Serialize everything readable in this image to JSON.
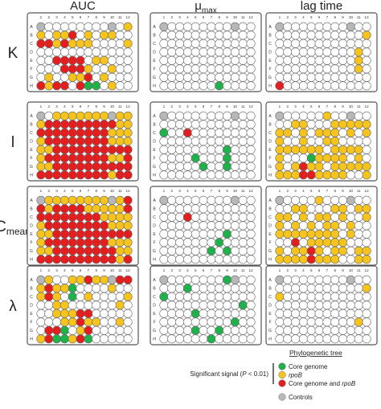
{
  "figure": {
    "column_titles": [
      {
        "main": "AUC",
        "sub": ""
      },
      {
        "main": "μ",
        "sub": "max"
      },
      {
        "main": "lag time",
        "sub": ""
      }
    ],
    "row_labels": [
      {
        "main": "K",
        "sub": ""
      },
      {
        "main": "l",
        "sub": ""
      },
      {
        "main": "C",
        "sub": "mean"
      },
      {
        "main": "λ",
        "sub": ""
      }
    ],
    "plate_row_letters": [
      "A",
      "B",
      "C",
      "D",
      "E",
      "F",
      "G",
      "H"
    ],
    "plate_col_numbers": [
      "1",
      "2",
      "3",
      "4",
      "5",
      "6",
      "7",
      "8",
      "9",
      "10",
      "11",
      "12"
    ]
  },
  "legend": {
    "title": "Phylogenetic tree",
    "significant_label": "Significant signal (",
    "significant_p": "P",
    "significant_tail": " < 0.01)",
    "items": [
      {
        "key": "g",
        "label": "Core genome",
        "italic": "",
        "color": "#1fb14a"
      },
      {
        "key": "y",
        "label": "",
        "italic": "rpoB",
        "color": "#f6c41c"
      },
      {
        "key": "r",
        "label": "Core genome and ",
        "italic": "rpoB",
        "color": "#e41e1e"
      }
    ],
    "controls": {
      "label": "Controls",
      "color": "#b8b8b8"
    }
  },
  "colors": {
    "empty_fill": "#ffffff",
    "well_stroke": "#666666",
    "plate_border": "#555555"
  },
  "chart_data": {
    "type": "table",
    "encoding": {
      "g": "Core genome",
      "y": "rpoB",
      "r": "Core genome and rpoB",
      "x": "Controls",
      ".": ""
    },
    "panels": [
      {
        "row": "K",
        "column": "AUC",
        "wells": [
          "x........x.y",
          "y.yyr.y.yy..",
          "rryryyy....y",
          "............",
          "..rrrr.yy...",
          "...rrry..y..",
          ".y..yyr.y...",
          "ryrr.rgg.y.."
        ]
      },
      {
        "row": "K",
        "column": "μmax",
        "wells": [
          "x........x..",
          "............",
          "............",
          "............",
          "............",
          "............",
          "............",
          ".......g...."
        ]
      },
      {
        "row": "K",
        "column": "lag time",
        "wells": [
          "x........x..",
          "...........y",
          "............",
          "..........y.",
          "..........y.",
          "..........y.",
          "............",
          "r..........."
        ]
      },
      {
        "row": "l",
        "column": "AUC",
        "wells": [
          "x.yyyyyyyxyy",
          "yrrrrrrrrryy",
          "rrrrrrrrryyy",
          "yrrrrrrrryyy",
          "yyrrrrrrrrrr",
          "yrrrrrrrryyr",
          "yyrrrrrrrrrr",
          "rrrrrrrrryrr"
        ]
      },
      {
        "row": "l",
        "column": "μmax",
        "wells": [
          "x........x..",
          "............",
          "g..r........",
          "............",
          "........g...",
          "....g...g...",
          ".....g..g...",
          "............"
        ]
      },
      {
        "row": "l",
        "column": "lag time",
        "wells": [
          "x.....y..x..",
          "..yy...yyyyy",
          "yy.y.yyy.y.y",
          "y..y..yy....",
          "yyyyyy.yyyy.",
          "y...gyyyy.y.",
          "y.yryy.yyyyy",
          "yyyrryyyy..y"
        ]
      },
      {
        "row": "Cmean",
        "column": "AUC",
        "wells": [
          "xyyyyyyyyxyr",
          "ryrrrryyyyyr",
          "rrrrrrrryyyy",
          "yrrrrrrrryyy",
          "yyrrrrrrrrrr",
          "yrrrrrrrryyy",
          "yyrrrrrrrryy",
          "rrrrrrrrrryr"
        ]
      },
      {
        "row": "Cmean",
        "column": "μmax",
        "wells": [
          "x........x..",
          "............",
          "...r........",
          "............",
          "........g...",
          ".......g....",
          "......g.g...",
          "............"
        ]
      },
      {
        "row": "Cmean",
        "column": "lag time",
        "wells": [
          "x....y...x..",
          "..yy...yy.yy",
          "yy.y.yy.y..y",
          "y.y.y.yy.y..",
          "yyyyyyyy.y..",
          "..r.yyyyy...",
          "y.yyry.yy.yy",
          "yyyyryyy..yy"
        ]
      },
      {
        "row": "λ",
        "column": "AUC",
        "wells": [
          "xy..yyryyxrr",
          "yryyg....y..",
          "yry.g.y....y",
          "..yy......y.",
          "..yyyrr.....",
          "...yyryy..y.",
          ".rrg.yr.....",
          "yrggyrg....."
        ]
      },
      {
        "row": "λ",
        "column": "μmax",
        "wells": [
          "x.......gx..",
          "...g........",
          "g...........",
          "..........g.",
          "....g.......",
          ".........g..",
          "....g..g....",
          "......g....."
        ]
      },
      {
        "row": "λ",
        "column": "lag time",
        "wells": [
          "x........x..",
          "...........y",
          "y...........",
          "............",
          "............",
          "..........y.",
          "............",
          "............"
        ]
      }
    ]
  }
}
